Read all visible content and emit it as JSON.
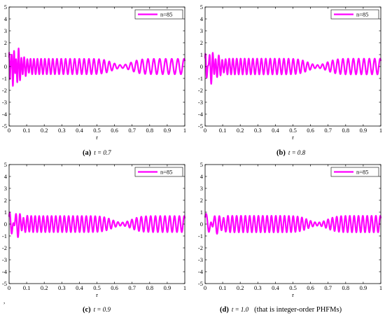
{
  "chart_data": [
    {
      "id": "a",
      "type": "line",
      "caption_letter": "(a)",
      "caption_text": "t = 0.7",
      "caption_note": "",
      "xlabel": "r",
      "xlim": [
        0,
        1
      ],
      "ylim": [
        -5,
        5
      ],
      "xticks": [
        "0",
        "0.1",
        "0.2",
        "0.3",
        "0.4",
        "0.5",
        "0.6",
        "0.7",
        "0.8",
        "0.9",
        "1"
      ],
      "yticks": [
        "-5",
        "-4",
        "-3",
        "-2",
        "-1",
        "0",
        "1",
        "2",
        "3",
        "4",
        "5"
      ],
      "grid": false,
      "legend_position": "top-right",
      "series": [
        {
          "name": "n=85",
          "color": "#ff00ff",
          "t": 0.7,
          "n": 85
        }
      ]
    },
    {
      "id": "b",
      "type": "line",
      "caption_letter": "(b)",
      "caption_text": "t = 0.8",
      "caption_note": "",
      "xlabel": "r",
      "xlim": [
        0,
        1
      ],
      "ylim": [
        -5,
        5
      ],
      "xticks": [
        "0",
        "0.1",
        "0.2",
        "0.3",
        "0.4",
        "0.5",
        "0.6",
        "0.7",
        "0.8",
        "0.9",
        "1"
      ],
      "yticks": [
        "-5",
        "-4",
        "-3",
        "-2",
        "-1",
        "0",
        "1",
        "2",
        "3",
        "4",
        "5"
      ],
      "grid": false,
      "legend_position": "top-right",
      "series": [
        {
          "name": "n=85",
          "color": "#ff00ff",
          "t": 0.8,
          "n": 85
        }
      ]
    },
    {
      "id": "c",
      "type": "line",
      "caption_letter": "(c)",
      "caption_text": "t = 0.9",
      "caption_note": "",
      "xlabel": "r",
      "xlim": [
        0,
        1
      ],
      "ylim": [
        -5,
        5
      ],
      "xticks": [
        "0",
        "0.1",
        "0.2",
        "0.3",
        "0.4",
        "0.5",
        "0.6",
        "0.7",
        "0.8",
        "0.9",
        "1"
      ],
      "yticks": [
        "-5",
        "-4",
        "-3",
        "-2",
        "-1",
        "0",
        "1",
        "2",
        "3",
        "4",
        "5"
      ],
      "grid": false,
      "legend_position": "top-right",
      "series": [
        {
          "name": "n=85",
          "color": "#ff00ff",
          "t": 0.9,
          "n": 85
        }
      ]
    },
    {
      "id": "d",
      "type": "line",
      "caption_letter": "(d)",
      "caption_text": "t = 1.0",
      "caption_note": "(that is integer-order PHFMs)",
      "xlabel": "r",
      "xlim": [
        0,
        1
      ],
      "ylim": [
        -5,
        5
      ],
      "xticks": [
        "0",
        "0.1",
        "0.2",
        "0.3",
        "0.4",
        "0.5",
        "0.6",
        "0.7",
        "0.8",
        "0.9",
        "1"
      ],
      "yticks": [
        "-5",
        "-4",
        "-3",
        "-2",
        "-1",
        "0",
        "1",
        "2",
        "3",
        "4",
        "5"
      ],
      "grid": false,
      "legend_position": "top-right",
      "series": [
        {
          "name": "n=85",
          "color": "#ff00ff",
          "t": 1.0,
          "n": 85
        }
      ]
    }
  ],
  "stray_mark": ","
}
